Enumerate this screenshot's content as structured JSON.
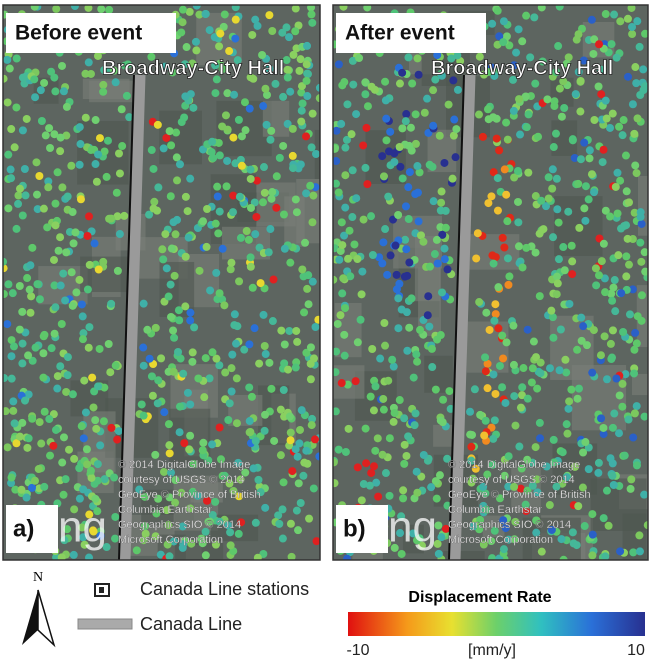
{
  "panels": [
    {
      "title": "Before event",
      "station": "Broadway-City Hall",
      "label": "a)",
      "logo": "ng",
      "credits": [
        "© 2014 DigitalGlobe Image",
        "courtesy of USGS © 2014",
        "GeoEye © Province of British",
        "Columbia Earthstar",
        "Geographics SIO © 2014",
        "Microsoft Corporation"
      ]
    },
    {
      "title": "After event",
      "station": "Broadway-City Hall",
      "label": "b)",
      "logo": "ng",
      "credits": [
        "© 2014 DigitalGlobe Image",
        "courtesy of USGS © 2014",
        "GeoEye © Province of British",
        "Columbia Earthstar",
        "Geographics SIO © 2014",
        "Microsoft Corporation"
      ]
    }
  ],
  "legend": {
    "north": "N",
    "stations": "Canada Line stations",
    "line": "Canada Line",
    "colorbar": {
      "title": "Displacement Rate",
      "min": -10,
      "unit": "[mm/y]",
      "max": 10
    }
  }
}
